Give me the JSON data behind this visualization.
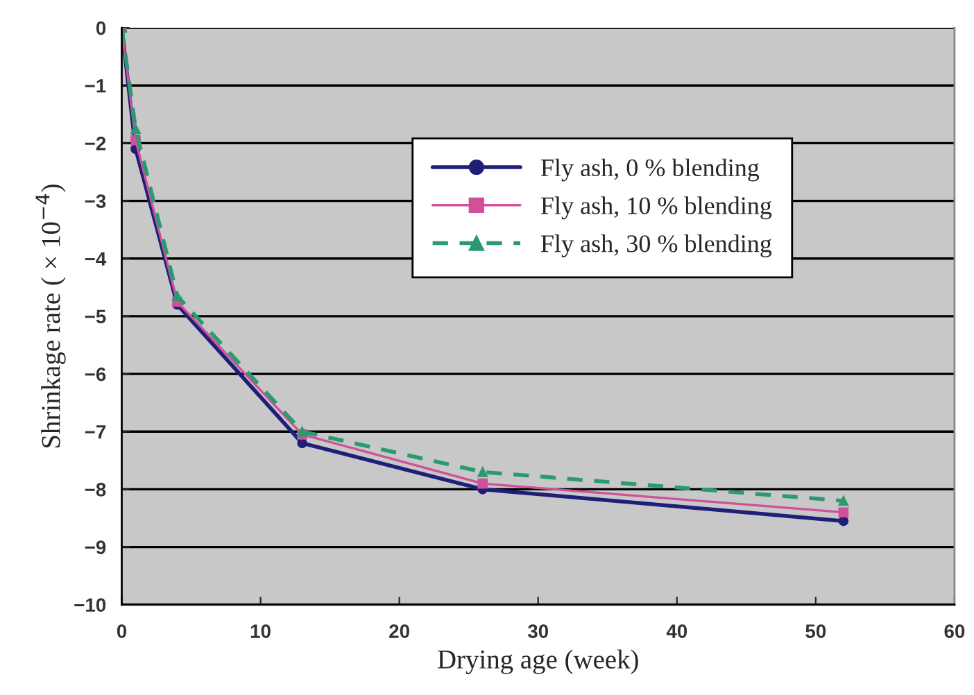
{
  "chart_data": {
    "type": "line",
    "xlabel": "Drying age (week)",
    "ylabel": "Shrinkage rate ( × 10$^{−4}$)",
    "x": [
      0,
      1,
      4,
      13,
      26,
      52
    ],
    "series": [
      {
        "name": "Fly ash, 0 % blending",
        "color": "#1f1f78",
        "marker": "circle",
        "line_style": "solid",
        "values": [
          0,
          -2.1,
          -4.8,
          -7.2,
          -8.0,
          -8.55
        ]
      },
      {
        "name": "Fly ash, 10 % blending",
        "color": "#d0509a",
        "marker": "square",
        "line_style": "solid",
        "values": [
          0,
          -1.95,
          -4.75,
          -7.05,
          -7.9,
          -8.4
        ]
      },
      {
        "name": "Fly ash, 30 % blending",
        "color": "#2a9a70",
        "marker": "triangle",
        "line_style": "dashed",
        "values": [
          0,
          -1.75,
          -4.65,
          -7.0,
          -7.7,
          -8.2
        ]
      }
    ],
    "xlim": [
      0,
      60
    ],
    "xticks": [
      0,
      10,
      20,
      30,
      40,
      50,
      60
    ],
    "ylim": [
      -10,
      0
    ],
    "yticks": [
      0,
      -1,
      -2,
      -3,
      -4,
      -5,
      -6,
      -7,
      -8,
      -9,
      -10
    ],
    "grid": "y",
    "legend": "top right"
  }
}
